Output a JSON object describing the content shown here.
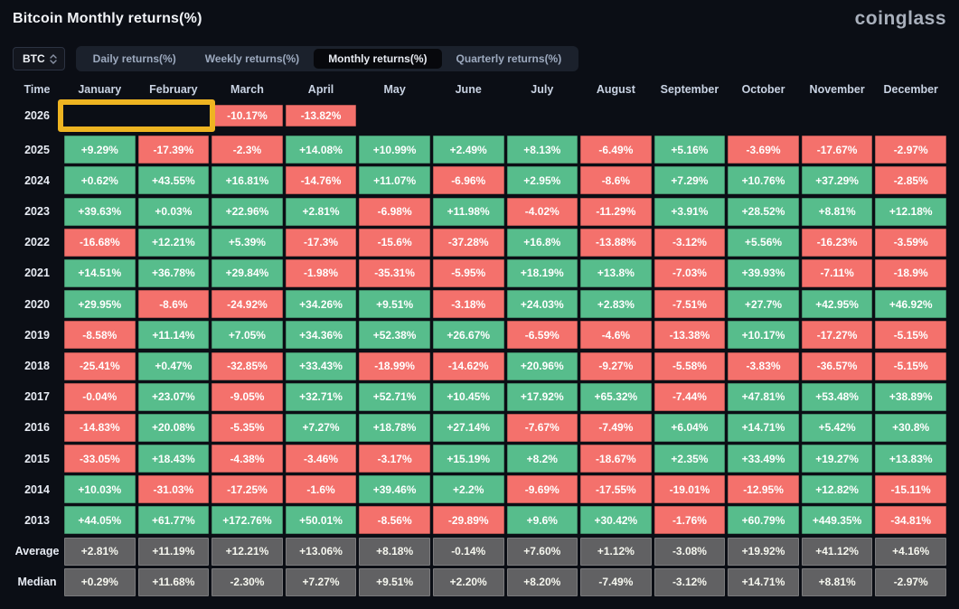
{
  "header": {
    "title": "Bitcoin Monthly returns(%)",
    "logo": "coinglass"
  },
  "controls": {
    "symbol": "BTC",
    "tabs": [
      {
        "label": "Daily returns(%)",
        "active": false
      },
      {
        "label": "Weekly returns(%)",
        "active": false
      },
      {
        "label": "Monthly returns(%)",
        "active": true
      },
      {
        "label": "Quarterly returns(%)",
        "active": false
      }
    ]
  },
  "colors": {
    "positive": "#57bd8c",
    "negative": "#f4716c",
    "neutral": "#616163",
    "highlight": "#eeb421",
    "background": "#0b0e15"
  },
  "table": {
    "columns": [
      "Time",
      "January",
      "February",
      "March",
      "April",
      "May",
      "June",
      "July",
      "August",
      "September",
      "October",
      "November",
      "December"
    ],
    "highlight": {
      "row": "2026",
      "months": [
        "January",
        "February"
      ]
    },
    "rows": [
      {
        "label": "2026",
        "cells": [
          [
            "-10.17%",
            "neg"
          ],
          [
            "-13.82%",
            "neg"
          ],
          null,
          null,
          null,
          null,
          null,
          null,
          null,
          null,
          null,
          null
        ]
      },
      {
        "label": "2025",
        "cells": [
          [
            "+9.29%",
            "pos"
          ],
          [
            "-17.39%",
            "neg"
          ],
          [
            "-2.3%",
            "neg"
          ],
          [
            "+14.08%",
            "pos"
          ],
          [
            "+10.99%",
            "pos"
          ],
          [
            "+2.49%",
            "pos"
          ],
          [
            "+8.13%",
            "pos"
          ],
          [
            "-6.49%",
            "neg"
          ],
          [
            "+5.16%",
            "pos"
          ],
          [
            "-3.69%",
            "neg"
          ],
          [
            "-17.67%",
            "neg"
          ],
          [
            "-2.97%",
            "neg"
          ]
        ]
      },
      {
        "label": "2024",
        "cells": [
          [
            "+0.62%",
            "pos"
          ],
          [
            "+43.55%",
            "pos"
          ],
          [
            "+16.81%",
            "pos"
          ],
          [
            "-14.76%",
            "neg"
          ],
          [
            "+11.07%",
            "pos"
          ],
          [
            "-6.96%",
            "neg"
          ],
          [
            "+2.95%",
            "pos"
          ],
          [
            "-8.6%",
            "neg"
          ],
          [
            "+7.29%",
            "pos"
          ],
          [
            "+10.76%",
            "pos"
          ],
          [
            "+37.29%",
            "pos"
          ],
          [
            "-2.85%",
            "neg"
          ]
        ]
      },
      {
        "label": "2023",
        "cells": [
          [
            "+39.63%",
            "pos"
          ],
          [
            "+0.03%",
            "pos"
          ],
          [
            "+22.96%",
            "pos"
          ],
          [
            "+2.81%",
            "pos"
          ],
          [
            "-6.98%",
            "neg"
          ],
          [
            "+11.98%",
            "pos"
          ],
          [
            "-4.02%",
            "neg"
          ],
          [
            "-11.29%",
            "neg"
          ],
          [
            "+3.91%",
            "pos"
          ],
          [
            "+28.52%",
            "pos"
          ],
          [
            "+8.81%",
            "pos"
          ],
          [
            "+12.18%",
            "pos"
          ]
        ]
      },
      {
        "label": "2022",
        "cells": [
          [
            "-16.68%",
            "neg"
          ],
          [
            "+12.21%",
            "pos"
          ],
          [
            "+5.39%",
            "pos"
          ],
          [
            "-17.3%",
            "neg"
          ],
          [
            "-15.6%",
            "neg"
          ],
          [
            "-37.28%",
            "neg"
          ],
          [
            "+16.8%",
            "pos"
          ],
          [
            "-13.88%",
            "neg"
          ],
          [
            "-3.12%",
            "neg"
          ],
          [
            "+5.56%",
            "pos"
          ],
          [
            "-16.23%",
            "neg"
          ],
          [
            "-3.59%",
            "neg"
          ]
        ]
      },
      {
        "label": "2021",
        "cells": [
          [
            "+14.51%",
            "pos"
          ],
          [
            "+36.78%",
            "pos"
          ],
          [
            "+29.84%",
            "pos"
          ],
          [
            "-1.98%",
            "neg"
          ],
          [
            "-35.31%",
            "neg"
          ],
          [
            "-5.95%",
            "neg"
          ],
          [
            "+18.19%",
            "pos"
          ],
          [
            "+13.8%",
            "pos"
          ],
          [
            "-7.03%",
            "neg"
          ],
          [
            "+39.93%",
            "pos"
          ],
          [
            "-7.11%",
            "neg"
          ],
          [
            "-18.9%",
            "neg"
          ]
        ]
      },
      {
        "label": "2020",
        "cells": [
          [
            "+29.95%",
            "pos"
          ],
          [
            "-8.6%",
            "neg"
          ],
          [
            "-24.92%",
            "neg"
          ],
          [
            "+34.26%",
            "pos"
          ],
          [
            "+9.51%",
            "pos"
          ],
          [
            "-3.18%",
            "neg"
          ],
          [
            "+24.03%",
            "pos"
          ],
          [
            "+2.83%",
            "pos"
          ],
          [
            "-7.51%",
            "neg"
          ],
          [
            "+27.7%",
            "pos"
          ],
          [
            "+42.95%",
            "pos"
          ],
          [
            "+46.92%",
            "pos"
          ]
        ]
      },
      {
        "label": "2019",
        "cells": [
          [
            "-8.58%",
            "neg"
          ],
          [
            "+11.14%",
            "pos"
          ],
          [
            "+7.05%",
            "pos"
          ],
          [
            "+34.36%",
            "pos"
          ],
          [
            "+52.38%",
            "pos"
          ],
          [
            "+26.67%",
            "pos"
          ],
          [
            "-6.59%",
            "neg"
          ],
          [
            "-4.6%",
            "neg"
          ],
          [
            "-13.38%",
            "neg"
          ],
          [
            "+10.17%",
            "pos"
          ],
          [
            "-17.27%",
            "neg"
          ],
          [
            "-5.15%",
            "neg"
          ]
        ]
      },
      {
        "label": "2018",
        "cells": [
          [
            "-25.41%",
            "neg"
          ],
          [
            "+0.47%",
            "pos"
          ],
          [
            "-32.85%",
            "neg"
          ],
          [
            "+33.43%",
            "pos"
          ],
          [
            "-18.99%",
            "neg"
          ],
          [
            "-14.62%",
            "neg"
          ],
          [
            "+20.96%",
            "pos"
          ],
          [
            "-9.27%",
            "neg"
          ],
          [
            "-5.58%",
            "neg"
          ],
          [
            "-3.83%",
            "neg"
          ],
          [
            "-36.57%",
            "neg"
          ],
          [
            "-5.15%",
            "neg"
          ]
        ]
      },
      {
        "label": "2017",
        "cells": [
          [
            "-0.04%",
            "neg"
          ],
          [
            "+23.07%",
            "pos"
          ],
          [
            "-9.05%",
            "neg"
          ],
          [
            "+32.71%",
            "pos"
          ],
          [
            "+52.71%",
            "pos"
          ],
          [
            "+10.45%",
            "pos"
          ],
          [
            "+17.92%",
            "pos"
          ],
          [
            "+65.32%",
            "pos"
          ],
          [
            "-7.44%",
            "neg"
          ],
          [
            "+47.81%",
            "pos"
          ],
          [
            "+53.48%",
            "pos"
          ],
          [
            "+38.89%",
            "pos"
          ]
        ]
      },
      {
        "label": "2016",
        "cells": [
          [
            "-14.83%",
            "neg"
          ],
          [
            "+20.08%",
            "pos"
          ],
          [
            "-5.35%",
            "neg"
          ],
          [
            "+7.27%",
            "pos"
          ],
          [
            "+18.78%",
            "pos"
          ],
          [
            "+27.14%",
            "pos"
          ],
          [
            "-7.67%",
            "neg"
          ],
          [
            "-7.49%",
            "neg"
          ],
          [
            "+6.04%",
            "pos"
          ],
          [
            "+14.71%",
            "pos"
          ],
          [
            "+5.42%",
            "pos"
          ],
          [
            "+30.8%",
            "pos"
          ]
        ]
      },
      {
        "label": "2015",
        "cells": [
          [
            "-33.05%",
            "neg"
          ],
          [
            "+18.43%",
            "pos"
          ],
          [
            "-4.38%",
            "neg"
          ],
          [
            "-3.46%",
            "neg"
          ],
          [
            "-3.17%",
            "neg"
          ],
          [
            "+15.19%",
            "pos"
          ],
          [
            "+8.2%",
            "pos"
          ],
          [
            "-18.67%",
            "neg"
          ],
          [
            "+2.35%",
            "pos"
          ],
          [
            "+33.49%",
            "pos"
          ],
          [
            "+19.27%",
            "pos"
          ],
          [
            "+13.83%",
            "pos"
          ]
        ]
      },
      {
        "label": "2014",
        "cells": [
          [
            "+10.03%",
            "pos"
          ],
          [
            "-31.03%",
            "neg"
          ],
          [
            "-17.25%",
            "neg"
          ],
          [
            "-1.6%",
            "neg"
          ],
          [
            "+39.46%",
            "pos"
          ],
          [
            "+2.2%",
            "pos"
          ],
          [
            "-9.69%",
            "neg"
          ],
          [
            "-17.55%",
            "neg"
          ],
          [
            "-19.01%",
            "neg"
          ],
          [
            "-12.95%",
            "neg"
          ],
          [
            "+12.82%",
            "pos"
          ],
          [
            "-15.11%",
            "neg"
          ]
        ]
      },
      {
        "label": "2013",
        "cells": [
          [
            "+44.05%",
            "pos"
          ],
          [
            "+61.77%",
            "pos"
          ],
          [
            "+172.76%",
            "pos"
          ],
          [
            "+50.01%",
            "pos"
          ],
          [
            "-8.56%",
            "neg"
          ],
          [
            "-29.89%",
            "neg"
          ],
          [
            "+9.6%",
            "pos"
          ],
          [
            "+30.42%",
            "pos"
          ],
          [
            "-1.76%",
            "neg"
          ],
          [
            "+60.79%",
            "pos"
          ],
          [
            "+449.35%",
            "pos"
          ],
          [
            "-34.81%",
            "neg"
          ]
        ]
      },
      {
        "label": "Average",
        "cells": [
          [
            "+2.81%",
            "neu"
          ],
          [
            "+11.19%",
            "neu"
          ],
          [
            "+12.21%",
            "neu"
          ],
          [
            "+13.06%",
            "neu"
          ],
          [
            "+8.18%",
            "neu"
          ],
          [
            "-0.14%",
            "neu"
          ],
          [
            "+7.60%",
            "neu"
          ],
          [
            "+1.12%",
            "neu"
          ],
          [
            "-3.08%",
            "neu"
          ],
          [
            "+19.92%",
            "neu"
          ],
          [
            "+41.12%",
            "neu"
          ],
          [
            "+4.16%",
            "neu"
          ]
        ]
      },
      {
        "label": "Median",
        "cells": [
          [
            "+0.29%",
            "neu"
          ],
          [
            "+11.68%",
            "neu"
          ],
          [
            "-2.30%",
            "neu"
          ],
          [
            "+7.27%",
            "neu"
          ],
          [
            "+9.51%",
            "neu"
          ],
          [
            "+2.20%",
            "neu"
          ],
          [
            "+8.20%",
            "neu"
          ],
          [
            "-7.49%",
            "neu"
          ],
          [
            "-3.12%",
            "neu"
          ],
          [
            "+14.71%",
            "neu"
          ],
          [
            "+8.81%",
            "neu"
          ],
          [
            "-2.97%",
            "neu"
          ]
        ]
      }
    ]
  }
}
